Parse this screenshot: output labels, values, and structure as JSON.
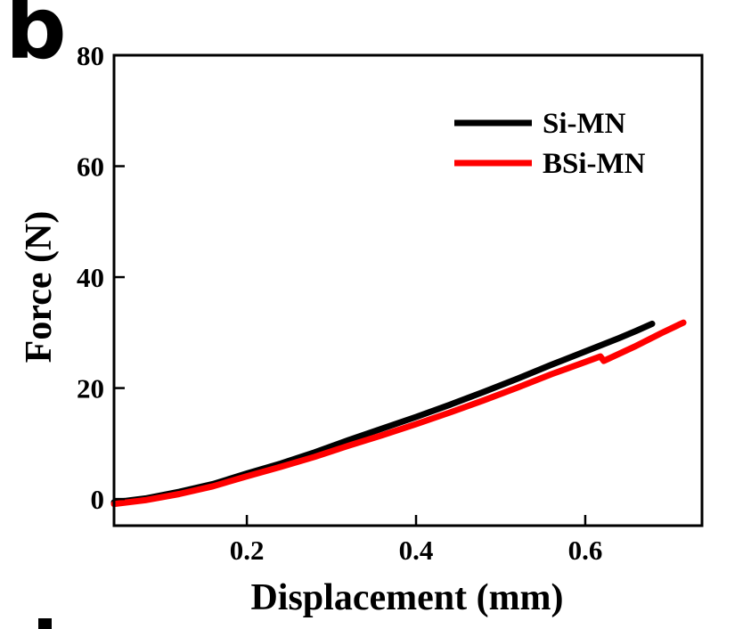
{
  "panel_label": "b",
  "colors": {
    "frame": "#000000",
    "background": "#ffffff",
    "si_mn": "#000000",
    "bsi_mn": "#ff0000"
  },
  "chart_data": {
    "type": "line",
    "title": "",
    "xlabel": "Displacement (mm)",
    "ylabel": "Force (N)",
    "xlim": [
      0.043,
      0.738
    ],
    "ylim": [
      -4.8,
      80
    ],
    "grid": false,
    "legend_position": "upper-right",
    "x_ticks": {
      "values": [
        0.2,
        0.4,
        0.6
      ],
      "labels": [
        "0.2",
        "0.4",
        "0.6"
      ]
    },
    "y_ticks": {
      "values": [
        0,
        20,
        40,
        60,
        80
      ],
      "labels": [
        "0",
        "20",
        "40",
        "60",
        "80"
      ]
    },
    "series": [
      {
        "name": "Si-MN",
        "color": "#000000",
        "points": [
          [
            0.043,
            -0.6
          ],
          [
            0.08,
            0.1
          ],
          [
            0.12,
            1.3
          ],
          [
            0.16,
            2.7
          ],
          [
            0.2,
            4.6
          ],
          [
            0.24,
            6.4
          ],
          [
            0.28,
            8.4
          ],
          [
            0.32,
            10.6
          ],
          [
            0.36,
            12.7
          ],
          [
            0.4,
            14.8
          ],
          [
            0.44,
            17.0
          ],
          [
            0.48,
            19.3
          ],
          [
            0.52,
            21.7
          ],
          [
            0.56,
            24.2
          ],
          [
            0.6,
            26.6
          ],
          [
            0.64,
            29.0
          ],
          [
            0.66,
            30.3
          ],
          [
            0.679,
            31.6
          ]
        ]
      },
      {
        "name": "BSi-MN",
        "color": "#ff0000",
        "points": [
          [
            0.043,
            -0.9
          ],
          [
            0.08,
            -0.2
          ],
          [
            0.12,
            0.9
          ],
          [
            0.16,
            2.3
          ],
          [
            0.2,
            4.1
          ],
          [
            0.24,
            5.8
          ],
          [
            0.28,
            7.6
          ],
          [
            0.32,
            9.6
          ],
          [
            0.36,
            11.5
          ],
          [
            0.4,
            13.5
          ],
          [
            0.44,
            15.6
          ],
          [
            0.48,
            17.8
          ],
          [
            0.52,
            20.1
          ],
          [
            0.56,
            22.5
          ],
          [
            0.6,
            24.7
          ],
          [
            0.618,
            25.7
          ],
          [
            0.622,
            24.9
          ],
          [
            0.66,
            27.6
          ],
          [
            0.69,
            29.9
          ],
          [
            0.716,
            31.8
          ]
        ]
      }
    ]
  }
}
